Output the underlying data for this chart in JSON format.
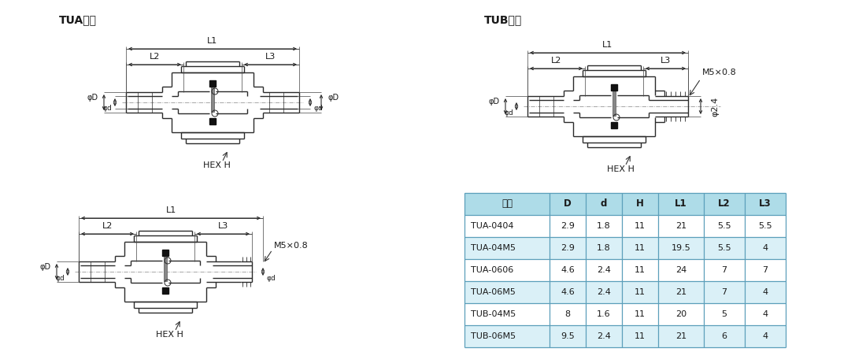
{
  "tua_label": "TUA类型",
  "tub_label": "TUB类型",
  "table_headers": [
    "型式",
    "D",
    "d",
    "H",
    "L1",
    "L2",
    "L3"
  ],
  "table_rows": [
    [
      "TUA-0404",
      "2.9",
      "1.8",
      "11",
      "21",
      "5.5",
      "5.5"
    ],
    [
      "TUA-04M5",
      "2.9",
      "1.8",
      "11",
      "19.5",
      "5.5",
      "4"
    ],
    [
      "TUA-0606",
      "4.6",
      "2.4",
      "11",
      "24",
      "7",
      "7"
    ],
    [
      "TUA-06M5",
      "4.6",
      "2.4",
      "11",
      "21",
      "7",
      "4"
    ],
    [
      "TUB-04M5",
      "8",
      "1.6",
      "11",
      "20",
      "5",
      "4"
    ],
    [
      "TUB-06M5",
      "9.5",
      "2.4",
      "11",
      "21",
      "6",
      "4"
    ]
  ],
  "header_bg": "#aedce8",
  "row_bg_alt": "#daf0f7",
  "row_bg_white": "#ffffff",
  "border_color": "#5b9fba",
  "text_color": "#1a1a1a",
  "drawing_line_color": "#2a2a2a",
  "bg_color": "#ffffff",
  "m5_label": "M5×0.8",
  "hex_label": "HEX H",
  "phi2_4_label": "φ2.4"
}
